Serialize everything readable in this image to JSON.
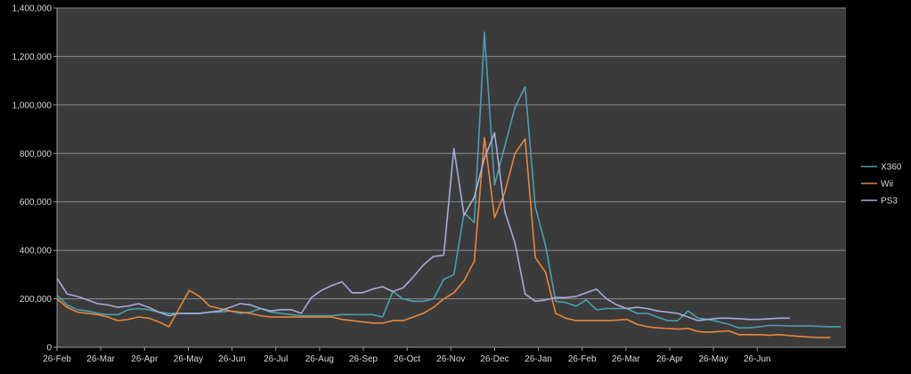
{
  "chart_data": {
    "type": "line",
    "title": "",
    "xlabel": "",
    "ylabel": "",
    "ylim": [
      0,
      1400000
    ],
    "yticks": [
      0,
      200000,
      400000,
      600000,
      800000,
      1000000,
      1200000,
      1400000
    ],
    "ytick_labels": [
      "0",
      "200,000",
      "400,000",
      "600,000",
      "800,000",
      "1,000,000",
      "1,200,000",
      "1,400,000"
    ],
    "xtick_labels": [
      "26-Feb",
      "26-Mar",
      "26-Apr",
      "26-May",
      "26-Jun",
      "26-Jul",
      "26-Aug",
      "26-Sep",
      "26-Oct",
      "26-Nov",
      "26-Dec",
      "26-Jan",
      "26-Feb",
      "26-Mar",
      "26-Apr",
      "26-May",
      "26-Jun"
    ],
    "x_start_label": "26-Feb",
    "points_per_month": 4.3,
    "grid": true,
    "legend_position": "right",
    "plot_background": "#3b3b3b",
    "series": [
      {
        "name": "X360",
        "color": "#4ba0ad",
        "values": [
          215000,
          175000,
          155000,
          150000,
          140000,
          135000,
          135000,
          155000,
          160000,
          155000,
          145000,
          140000,
          140000,
          140000,
          140000,
          145000,
          145000,
          150000,
          140000,
          145000,
          160000,
          145000,
          140000,
          135000,
          130000,
          130000,
          130000,
          130000,
          135000,
          135000,
          135000,
          135000,
          125000,
          230000,
          200000,
          190000,
          190000,
          200000,
          280000,
          300000,
          555000,
          515000,
          1300000,
          670000,
          830000,
          990000,
          1075000,
          580000,
          420000,
          190000,
          185000,
          170000,
          195000,
          155000,
          160000,
          160000,
          160000,
          140000,
          140000,
          125000,
          110000,
          110000,
          150000,
          120000,
          115000,
          105000,
          95000,
          80000,
          80000,
          85000,
          90000,
          90000,
          88000,
          88000,
          88000,
          86000,
          85000,
          85000
        ]
      },
      {
        "name": "Wii",
        "color": "#e8873c",
        "values": [
          200000,
          165000,
          145000,
          140000,
          135000,
          125000,
          110000,
          115000,
          125000,
          120000,
          105000,
          85000,
          160000,
          235000,
          210000,
          170000,
          160000,
          150000,
          145000,
          140000,
          130000,
          125000,
          125000,
          125000,
          125000,
          125000,
          125000,
          125000,
          115000,
          110000,
          105000,
          100000,
          100000,
          110000,
          110000,
          125000,
          140000,
          165000,
          200000,
          225000,
          275000,
          355000,
          865000,
          535000,
          640000,
          800000,
          860000,
          370000,
          310000,
          140000,
          120000,
          110000,
          110000,
          110000,
          110000,
          112000,
          115000,
          95000,
          85000,
          80000,
          78000,
          75000,
          78000,
          65000,
          62000,
          65000,
          68000,
          52000,
          52000,
          52000,
          50000,
          52000,
          48000,
          45000,
          42000,
          40000,
          40000
        ]
      },
      {
        "name": "PS3",
        "color": "#a7acd6",
        "values": [
          285000,
          220000,
          210000,
          195000,
          180000,
          175000,
          165000,
          170000,
          180000,
          165000,
          145000,
          130000,
          140000,
          140000,
          140000,
          145000,
          150000,
          165000,
          180000,
          175000,
          160000,
          150000,
          155000,
          155000,
          140000,
          205000,
          235000,
          255000,
          270000,
          225000,
          225000,
          240000,
          250000,
          230000,
          245000,
          290000,
          340000,
          375000,
          380000,
          820000,
          545000,
          620000,
          780000,
          885000,
          560000,
          430000,
          220000,
          190000,
          195000,
          205000,
          205000,
          210000,
          225000,
          240000,
          200000,
          175000,
          160000,
          165000,
          160000,
          150000,
          145000,
          140000,
          125000,
          110000,
          115000,
          120000,
          120000,
          118000,
          115000,
          115000,
          118000,
          120000,
          120000
        ]
      }
    ]
  }
}
